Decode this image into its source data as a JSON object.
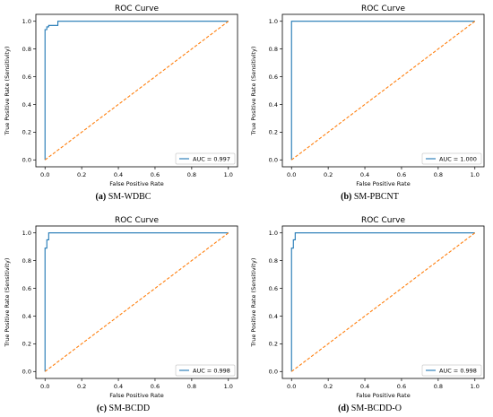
{
  "chart_data": [
    {
      "type": "line",
      "title": "ROC Curve",
      "xlabel": "False Positive Rate",
      "ylabel": "True Positive Rate (Sensitivity)",
      "xlim": [
        0,
        1
      ],
      "ylim": [
        0,
        1
      ],
      "xticks": [
        "0.0",
        "0.2",
        "0.4",
        "0.6",
        "0.8",
        "1.0"
      ],
      "yticks": [
        "0.0",
        "0.2",
        "0.4",
        "0.6",
        "0.8",
        "1.0"
      ],
      "grid": false,
      "legend_position": "bottom-right",
      "caption_letter": "(a)",
      "caption_name": "SM-WDBC",
      "series": [
        {
          "name": "AUC = 0.997",
          "color": "#1f77b4",
          "style": "solid",
          "x": [
            0,
            0,
            0.01,
            0.01,
            0.02,
            0.02,
            0.07,
            0.07,
            1.0
          ],
          "y": [
            0,
            0.94,
            0.94,
            0.96,
            0.96,
            0.97,
            0.97,
            1.0,
            1.0
          ]
        },
        {
          "color": "#ff7f0e",
          "style": "dashed",
          "x": [
            0,
            1
          ],
          "y": [
            0,
            1
          ]
        }
      ]
    },
    {
      "type": "line",
      "title": "ROC Curve",
      "xlabel": "False Positive Rate",
      "ylabel": "True Positive Rate (Sensitivity)",
      "xlim": [
        0,
        1
      ],
      "ylim": [
        0,
        1
      ],
      "xticks": [
        "0.0",
        "0.2",
        "0.4",
        "0.6",
        "0.8",
        "1.0"
      ],
      "yticks": [
        "0.0",
        "0.2",
        "0.4",
        "0.6",
        "0.8",
        "1.0"
      ],
      "grid": false,
      "legend_position": "bottom-right",
      "caption_letter": "(b)",
      "caption_name": "SM-PBCNT",
      "series": [
        {
          "name": "AUC = 1.000",
          "color": "#1f77b4",
          "style": "solid",
          "x": [
            0,
            0,
            1.0
          ],
          "y": [
            0,
            1.0,
            1.0
          ]
        },
        {
          "color": "#ff7f0e",
          "style": "dashed",
          "x": [
            0,
            1
          ],
          "y": [
            0,
            1
          ]
        }
      ]
    },
    {
      "type": "line",
      "title": "ROC Curve",
      "xlabel": "False Positive Rate",
      "ylabel": "True Positive Rate (Sensitivity)",
      "xlim": [
        0,
        1
      ],
      "ylim": [
        0,
        1
      ],
      "xticks": [
        "0.0",
        "0.2",
        "0.4",
        "0.6",
        "0.8",
        "1.0"
      ],
      "yticks": [
        "0.0",
        "0.2",
        "0.4",
        "0.6",
        "0.8",
        "1.0"
      ],
      "grid": false,
      "legend_position": "bottom-right",
      "caption_letter": "(c)",
      "caption_name": "SM-BCDD",
      "series": [
        {
          "name": "AUC = 0.998",
          "color": "#1f77b4",
          "style": "solid",
          "x": [
            0,
            0,
            0.01,
            0.01,
            0.02,
            0.02,
            1.0
          ],
          "y": [
            0,
            0.89,
            0.89,
            0.95,
            0.95,
            1.0,
            1.0
          ]
        },
        {
          "color": "#ff7f0e",
          "style": "dashed",
          "x": [
            0,
            1
          ],
          "y": [
            0,
            1
          ]
        }
      ]
    },
    {
      "type": "line",
      "title": "ROC Curve",
      "xlabel": "False Positive Rate",
      "ylabel": "True Positive Rate (Sensitivity)",
      "xlim": [
        0,
        1
      ],
      "ylim": [
        0,
        1
      ],
      "xticks": [
        "0.0",
        "0.2",
        "0.4",
        "0.6",
        "0.8",
        "1.0"
      ],
      "yticks": [
        "0.0",
        "0.2",
        "0.4",
        "0.6",
        "0.8",
        "1.0"
      ],
      "grid": false,
      "legend_position": "bottom-right",
      "caption_letter": "(d)",
      "caption_name": "SM-BCDD-O",
      "series": [
        {
          "name": "AUC = 0.998",
          "color": "#1f77b4",
          "style": "solid",
          "x": [
            0,
            0,
            0.01,
            0.01,
            0.02,
            0.02,
            1.0
          ],
          "y": [
            0,
            0.89,
            0.89,
            0.95,
            0.95,
            1.0,
            1.0
          ]
        },
        {
          "color": "#ff7f0e",
          "style": "dashed",
          "x": [
            0,
            1
          ],
          "y": [
            0,
            1
          ]
        }
      ]
    }
  ]
}
